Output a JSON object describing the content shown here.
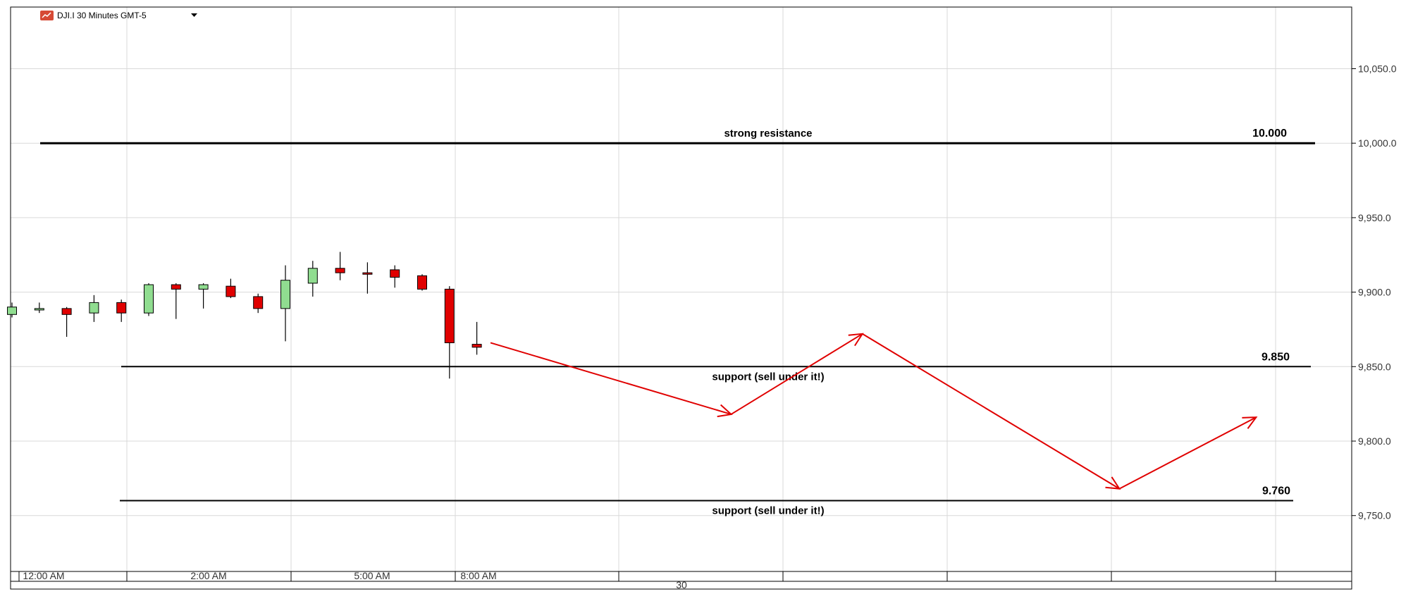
{
  "chart_data": {
    "type": "candlestick",
    "title": "DJI.I 30 Minutes GMT-5",
    "symbol_icon": "chart-icon",
    "dropdown_icon": "caret-down-icon",
    "ylim": [
      9710,
      10100
    ],
    "y_ticks": [
      9750,
      9800,
      9850,
      9900,
      9950,
      10000,
      10050
    ],
    "y_tick_labels": [
      "9,750.0",
      "9,800.0",
      "9,850.0",
      "9,900.0",
      "9,950.0",
      "10,000.0",
      "10,050.0"
    ],
    "x_tick_labels": [
      "12:00 AM",
      "2:00 AM",
      "5:00 AM",
      "8:00 AM"
    ],
    "date_label": "30",
    "grid": true,
    "colors": {
      "up": "#90dd90",
      "down": "#e00000",
      "annotation": "#e00000",
      "level": "#000000"
    },
    "candles": [
      {
        "open": 9885,
        "high": 9893,
        "low": 9883,
        "close": 9890
      },
      {
        "open": 9888,
        "high": 9893,
        "low": 9886,
        "close": 9889
      },
      {
        "open": 9889,
        "high": 9890,
        "low": 9870,
        "close": 9885
      },
      {
        "open": 9886,
        "high": 9898,
        "low": 9880,
        "close": 9893
      },
      {
        "open": 9893,
        "high": 9895,
        "low": 9880,
        "close": 9886
      },
      {
        "open": 9886,
        "high": 9906,
        "low": 9884,
        "close": 9905
      },
      {
        "open": 9905,
        "high": 9906,
        "low": 9882,
        "close": 9902
      },
      {
        "open": 9902,
        "high": 9906,
        "low": 9889,
        "close": 9905
      },
      {
        "open": 9904,
        "high": 9909,
        "low": 9896,
        "close": 9897
      },
      {
        "open": 9897,
        "high": 9899,
        "low": 9886,
        "close": 9889
      },
      {
        "open": 9889,
        "high": 9918,
        "low": 9867,
        "close": 9908
      },
      {
        "open": 9906,
        "high": 9921,
        "low": 9897,
        "close": 9916
      },
      {
        "open": 9916,
        "high": 9927,
        "low": 9908,
        "close": 9913
      },
      {
        "open": 9913,
        "high": 9920,
        "low": 9899,
        "close": 9912
      },
      {
        "open": 9915,
        "high": 9918,
        "low": 9903,
        "close": 9910
      },
      {
        "open": 9911,
        "high": 9912,
        "low": 9901,
        "close": 9902
      },
      {
        "open": 9902,
        "high": 9904,
        "low": 9842,
        "close": 9866
      },
      {
        "open": 9865,
        "high": 9880,
        "low": 9858,
        "close": 9863
      }
    ],
    "levels": [
      {
        "value": 10000,
        "value_label": "10.000",
        "text": "strong resistance",
        "text_position": "above"
      },
      {
        "value": 9850,
        "value_label": "9.850",
        "text": "support (sell under it!)",
        "text_position": "below"
      },
      {
        "value": 9760,
        "value_label": "9.760",
        "text": "support (sell under it!)",
        "text_position": "below"
      }
    ],
    "forecast_path": [
      {
        "bar": 17.5,
        "y": 9866
      },
      {
        "bar": 26.3,
        "y": 9818
      },
      {
        "bar": 31.1,
        "y": 9872
      },
      {
        "bar": 40.5,
        "y": 9768
      },
      {
        "bar": 45.5,
        "y": 9816
      }
    ]
  }
}
